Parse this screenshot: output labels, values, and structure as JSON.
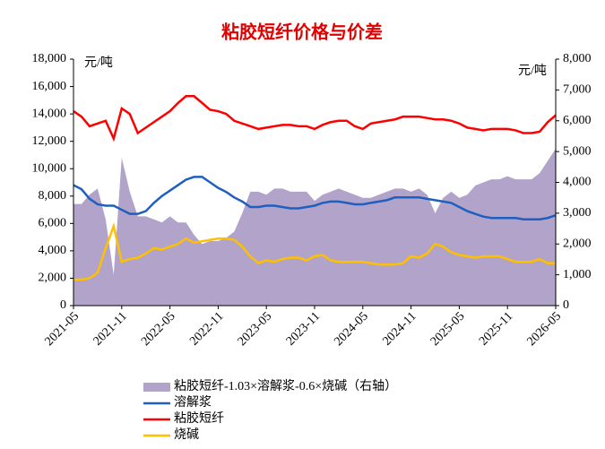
{
  "chart_data": {
    "type": "line",
    "title": "粘胶短纤价格与价差",
    "y_unit": "元/吨",
    "y2_unit": "元/吨",
    "x": [
      "2021-05",
      "2021-06",
      "2021-07",
      "2021-08",
      "2021-09",
      "2021-10",
      "2021-11",
      "2021-12",
      "2022-01",
      "2022-02",
      "2022-03",
      "2022-04",
      "2022-05",
      "2022-06",
      "2022-07",
      "2022-08",
      "2022-09",
      "2022-10",
      "2022-11",
      "2022-12",
      "2023-01",
      "2023-02",
      "2023-03",
      "2023-04",
      "2023-05",
      "2023-06",
      "2023-07",
      "2023-08",
      "2023-09",
      "2023-10",
      "2023-11",
      "2023-12",
      "2024-01",
      "2024-02",
      "2024-03",
      "2024-04",
      "2024-05",
      "2024-06",
      "2024-07",
      "2024-08",
      "2024-09",
      "2024-10",
      "2024-11",
      "2024-12",
      "2025-01",
      "2025-02",
      "2025-03",
      "2025-04",
      "2025-05",
      "2025-06",
      "2025-07",
      "2025-08",
      "2025-09",
      "2025-10",
      "2025-11",
      "2025-12",
      "2026-01",
      "2026-02",
      "2026-03",
      "2026-04",
      "2026-05"
    ],
    "xticks": [
      "2021-05",
      "2021-11",
      "2022-05",
      "2022-11",
      "2023-05",
      "2023-11",
      "2024-05",
      "2024-11",
      "2025-05",
      "2025-11",
      "2026-05"
    ],
    "ylim": [
      0,
      18000
    ],
    "yticks": [
      0,
      {
        "value": 2000,
        "label": "2,000"
      },
      {
        "value": 4000,
        "label": "4,000"
      },
      {
        "value": 6000,
        "label": "6,000"
      },
      {
        "value": 8000,
        "label": "8,000"
      },
      {
        "value": 10000,
        "label": "10,000"
      },
      {
        "value": 12000,
        "label": "12,000"
      },
      {
        "value": 14000,
        "label": "14,000"
      },
      {
        "value": 16000,
        "label": "16,000"
      },
      {
        "value": 18000,
        "label": "18,000"
      }
    ],
    "y2lim": [
      0,
      8000
    ],
    "y2ticks": [
      0,
      {
        "value": 1000,
        "label": "1,000"
      },
      {
        "value": 2000,
        "label": "2,000"
      },
      {
        "value": 3000,
        "label": "3,000"
      },
      {
        "value": 4000,
        "label": "4,000"
      },
      {
        "value": 5000,
        "label": "5,000"
      },
      {
        "value": 6000,
        "label": "6,000"
      },
      {
        "value": 7000,
        "label": "7,000"
      },
      {
        "value": 8000,
        "label": "8,000"
      }
    ],
    "series": [
      {
        "name": "粘胶短纤-1.03×溶解浆-0.6×烧碱（右轴）",
        "type": "area",
        "axis": "y2",
        "color": "#b1a3c9",
        "values": [
          3300,
          3300,
          3600,
          3800,
          2800,
          1000,
          4800,
          3700,
          2900,
          2900,
          2800,
          2700,
          2900,
          2700,
          2700,
          2300,
          2000,
          2100,
          2100,
          2200,
          2400,
          3000,
          3700,
          3700,
          3600,
          3800,
          3800,
          3700,
          3700,
          3700,
          3400,
          3600,
          3700,
          3800,
          3700,
          3600,
          3500,
          3500,
          3600,
          3700,
          3800,
          3800,
          3700,
          3800,
          3600,
          3000,
          3500,
          3700,
          3500,
          3600,
          3900,
          4000,
          4100,
          4100,
          4200,
          4100,
          4100,
          4100,
          4300,
          4700,
          5100
        ]
      },
      {
        "name": "溶解浆",
        "type": "line",
        "color": "#1f5fbf",
        "values": [
          8800,
          8500,
          7800,
          7400,
          7300,
          7300,
          7000,
          6700,
          6700,
          6900,
          7500,
          8000,
          8400,
          8800,
          9200,
          9400,
          9400,
          9000,
          8600,
          8300,
          7900,
          7600,
          7200,
          7200,
          7300,
          7300,
          7200,
          7100,
          7100,
          7200,
          7300,
          7500,
          7600,
          7600,
          7500,
          7400,
          7400,
          7500,
          7600,
          7700,
          7900,
          7900,
          7900,
          7900,
          7800,
          7700,
          7600,
          7500,
          7200,
          6900,
          6700,
          6500,
          6400,
          6400,
          6400,
          6400,
          6300,
          6300,
          6300,
          6400,
          6600
        ]
      },
      {
        "name": "粘胶短纤",
        "type": "line",
        "color": "#ff0000",
        "values": [
          14200,
          13800,
          13100,
          13300,
          13500,
          12200,
          14400,
          14000,
          12600,
          13000,
          13400,
          13800,
          14200,
          14800,
          15300,
          15300,
          14800,
          14300,
          14200,
          14000,
          13500,
          13300,
          13100,
          12900,
          13000,
          13100,
          13200,
          13200,
          13100,
          13100,
          12900,
          13200,
          13400,
          13500,
          13500,
          13100,
          12900,
          13300,
          13400,
          13500,
          13600,
          13800,
          13800,
          13800,
          13700,
          13600,
          13600,
          13500,
          13300,
          13000,
          12900,
          12800,
          12900,
          12900,
          12900,
          12800,
          12600,
          12600,
          12700,
          13400,
          13900
        ]
      },
      {
        "name": "烧碱",
        "type": "line",
        "color": "#ffc000",
        "values": [
          1900,
          1900,
          2000,
          2400,
          4200,
          5800,
          3200,
          3400,
          3500,
          3800,
          4200,
          4100,
          4300,
          4500,
          4900,
          4600,
          4700,
          4800,
          4900,
          4900,
          4800,
          4300,
          3600,
          3100,
          3300,
          3200,
          3400,
          3500,
          3500,
          3300,
          3600,
          3700,
          3300,
          3200,
          3200,
          3200,
          3200,
          3100,
          3000,
          3000,
          3000,
          3100,
          3600,
          3500,
          3800,
          4500,
          4300,
          3900,
          3700,
          3600,
          3500,
          3600,
          3600,
          3600,
          3400,
          3200,
          3200,
          3200,
          3400,
          3100,
          3100
        ]
      }
    ]
  }
}
